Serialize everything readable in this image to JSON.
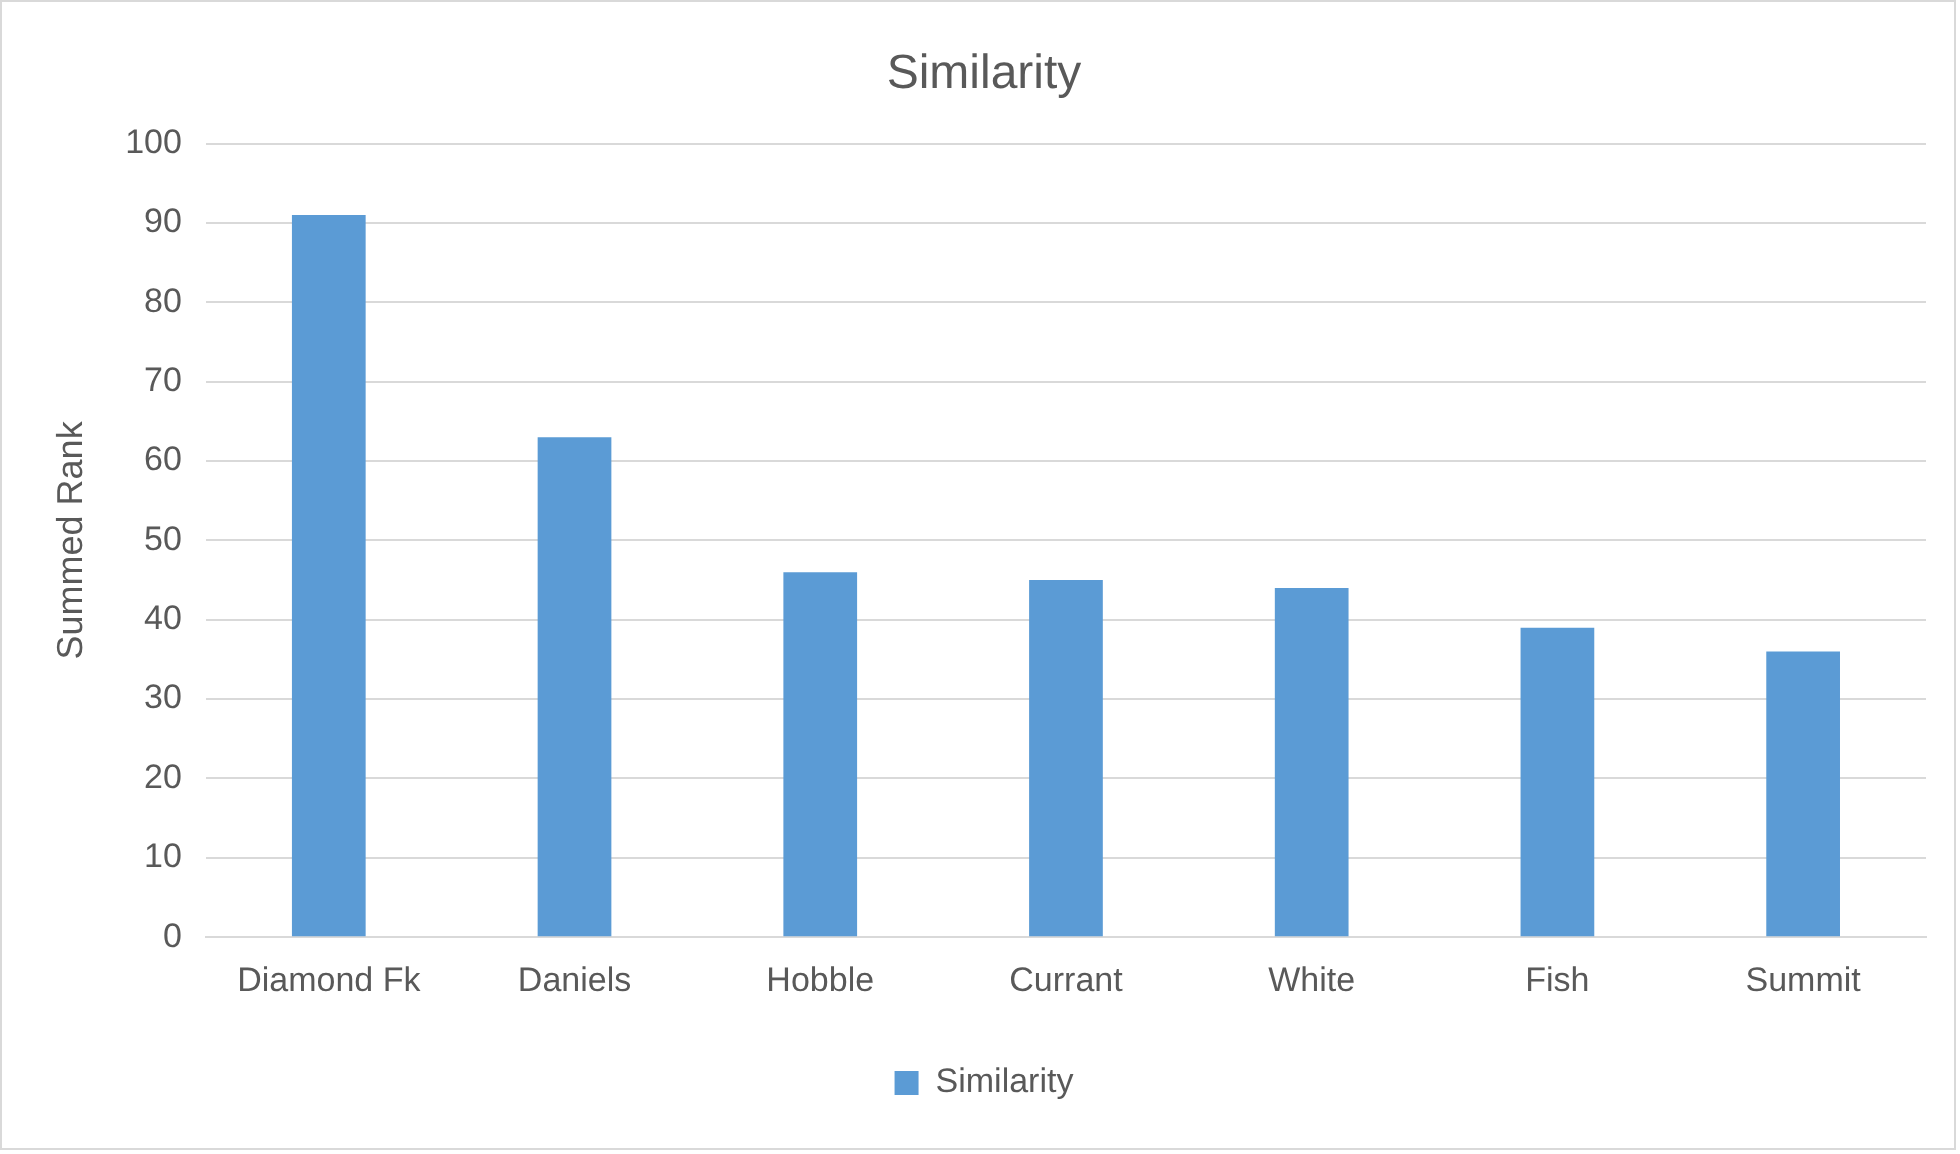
{
  "chart_data": {
    "type": "bar",
    "title": "Similarity",
    "ylabel": "Summed Rank",
    "categories": [
      "Diamond Fk",
      "Daniels",
      "Hobble",
      "Currant",
      "White",
      "Fish",
      "Summit"
    ],
    "series": [
      {
        "name": "Similarity",
        "color": "#5b9bd5",
        "values": [
          91,
          63,
          46,
          45,
          44,
          39,
          36
        ]
      }
    ],
    "ylim": [
      0,
      100
    ],
    "yticks": [
      0,
      10,
      20,
      30,
      40,
      50,
      60,
      70,
      80,
      90,
      100
    ],
    "grid": "y",
    "legend": "bottom"
  }
}
